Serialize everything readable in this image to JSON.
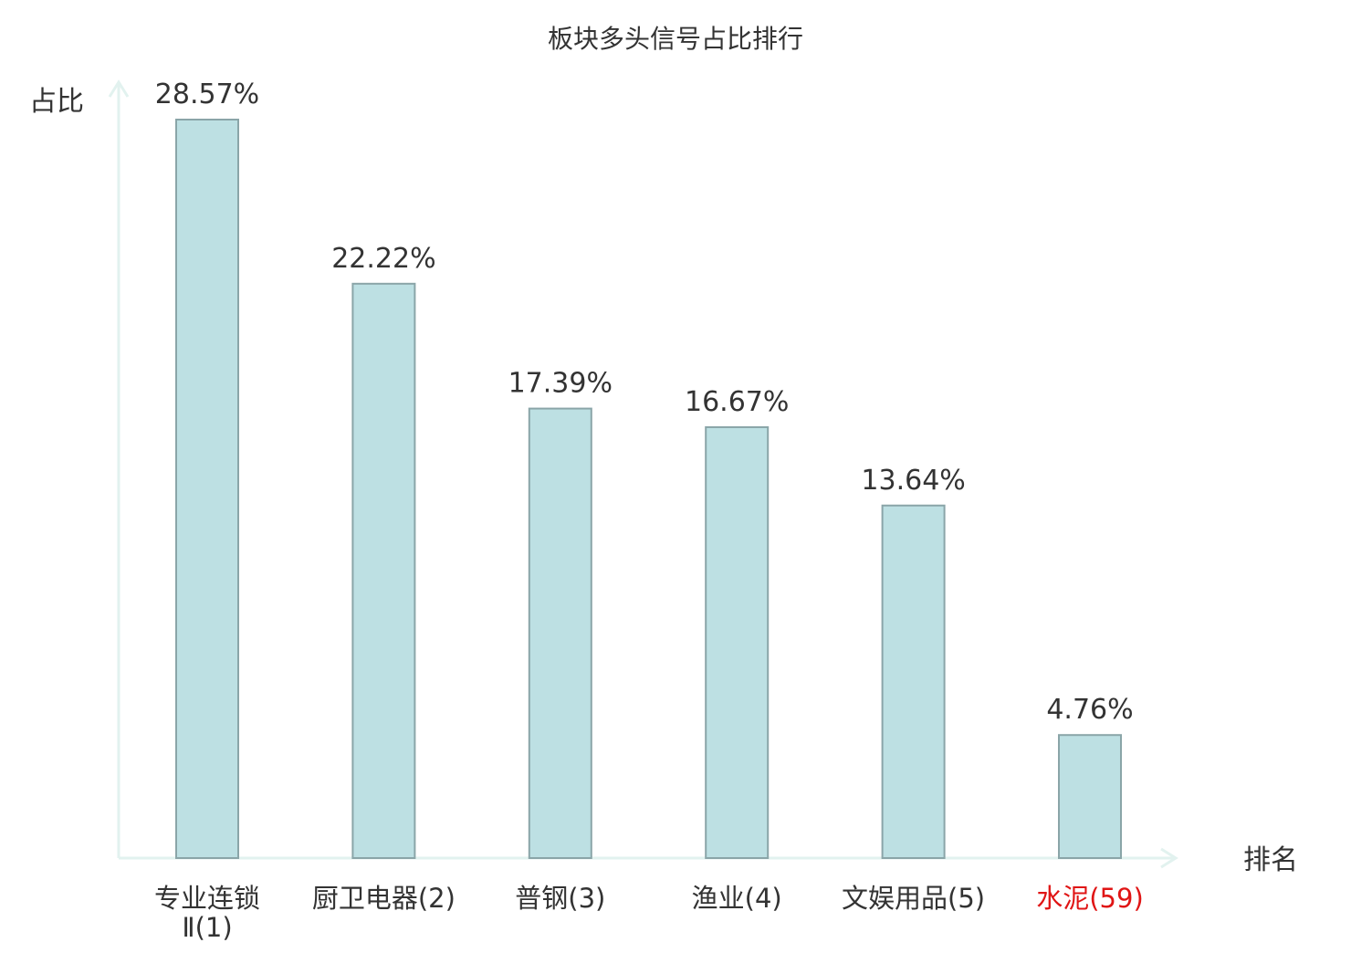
{
  "chart_data": {
    "type": "bar",
    "title": "板块多头信号占比排行",
    "ylabel": "占比",
    "xlabel": "排名",
    "ylim": [
      0,
      30
    ],
    "grid": false,
    "categories": [
      {
        "name": "专业连锁Ⅱ",
        "rank": "(1)",
        "highlight": false
      },
      {
        "name": "厨卫电器",
        "rank": "(2)",
        "highlight": false
      },
      {
        "name": "普钢",
        "rank": "(3)",
        "highlight": false
      },
      {
        "name": "渔业",
        "rank": "(4)",
        "highlight": false
      },
      {
        "name": "文娱用品",
        "rank": "(5)",
        "highlight": false
      },
      {
        "name": "水泥",
        "rank": "(59)",
        "highlight": true
      }
    ],
    "values": [
      28.57,
      22.22,
      17.39,
      16.67,
      13.64,
      4.76
    ],
    "value_labels": [
      "28.57%",
      "22.22%",
      "17.39%",
      "16.67%",
      "13.64%",
      "4.76%"
    ]
  },
  "colors": {
    "bar_fill": "#bde0e3",
    "bar_stroke": "#8aa5a8",
    "axis": "#e2f2ef",
    "text": "#333333",
    "highlight": "#e01515"
  }
}
